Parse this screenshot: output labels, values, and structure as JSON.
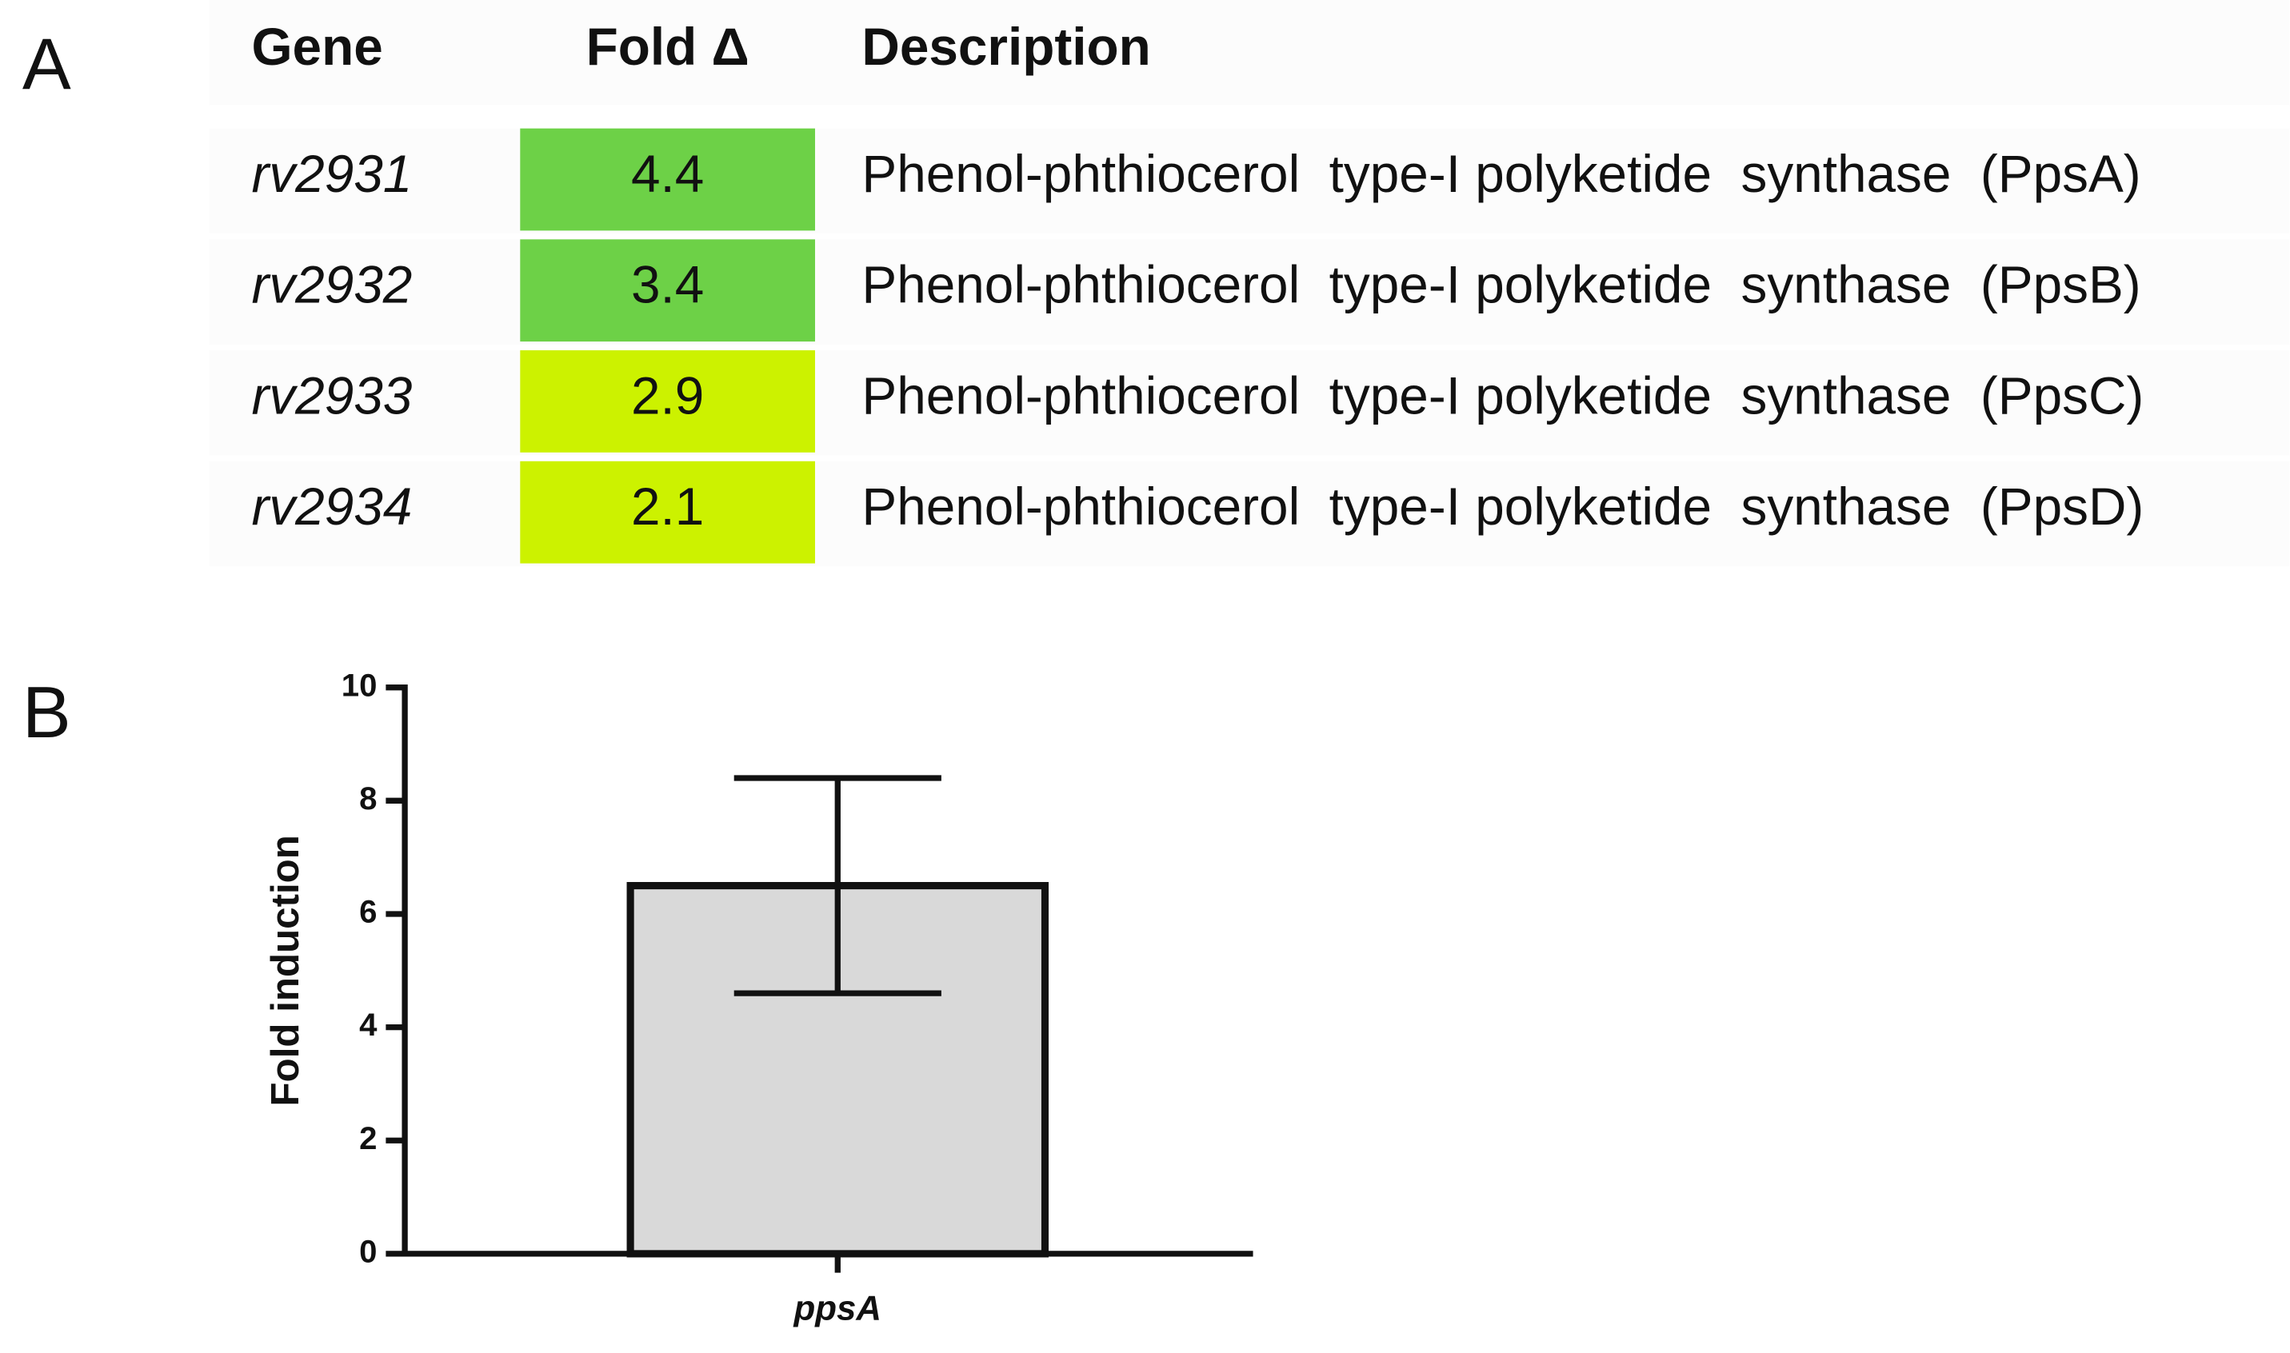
{
  "panels": [
    "A",
    "B"
  ],
  "table": {
    "header": [
      "Gene",
      "Fold Δ",
      "Description"
    ],
    "rows": [
      {
        "gene": "rv2931",
        "fold": 4.4,
        "color": "#6dd147",
        "description": "Phenol-phthiocerol  type-I polyketide  synthase  (PpsA)"
      },
      {
        "gene": "rv2932",
        "fold": 3.4,
        "color": "#6dd147",
        "description": "Phenol-phthiocerol  type-I polyketide  synthase  (PpsB)"
      },
      {
        "gene": "rv2933",
        "fold": 2.9,
        "color": "#ccf200",
        "description": "Phenol-phthiocerol  type-I polyketide  synthase  (PpsC)"
      },
      {
        "gene": "rv2934",
        "fold": 2.1,
        "color": "#ccf200",
        "description": "Phenol-phthiocerol  type-I polyketide  synthase  (PpsD)"
      }
    ]
  },
  "chart_data": {
    "type": "bar",
    "ylabel": "Fold induction",
    "categories": [
      "ppsA"
    ],
    "values": [
      6.5
    ],
    "errors": [
      1.9
    ],
    "color": "#d9d9d9",
    "ylim": [
      0,
      10
    ],
    "yticks": [
      0,
      2,
      4,
      6,
      8,
      10
    ]
  }
}
